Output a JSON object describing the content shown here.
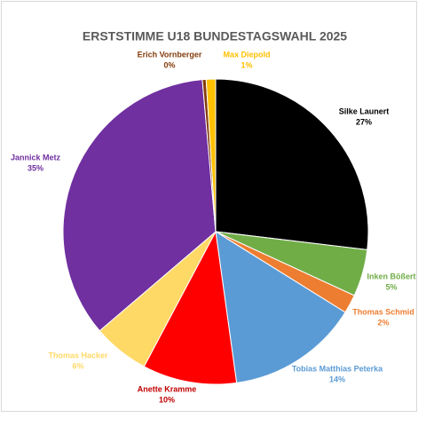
{
  "chart_data": {
    "type": "pie",
    "title": "ERSTSTIMME U18 BUNDESTAGSWAHL 2025",
    "categories": [
      "Silke Launert",
      "Inken Bößert",
      "Thomas Schmid",
      "Tobias Matthias Peterka",
      "Anette Kramme",
      "Thomas Hacker",
      "Jannick Metz",
      "Erich Vornberger",
      "Max Diepold"
    ],
    "values": [
      27,
      5,
      2,
      14,
      10,
      6,
      35,
      0.4,
      1
    ],
    "value_labels": [
      "27%",
      "5%",
      "2%",
      "14%",
      "10%",
      "6%",
      "35%",
      "0%",
      "1%"
    ],
    "colors": [
      "#000000",
      "#70ad47",
      "#ed7d31",
      "#5b9bd5",
      "#ff0000",
      "#ffd966",
      "#7030a0",
      "#843c0c",
      "#ffc000"
    ]
  }
}
